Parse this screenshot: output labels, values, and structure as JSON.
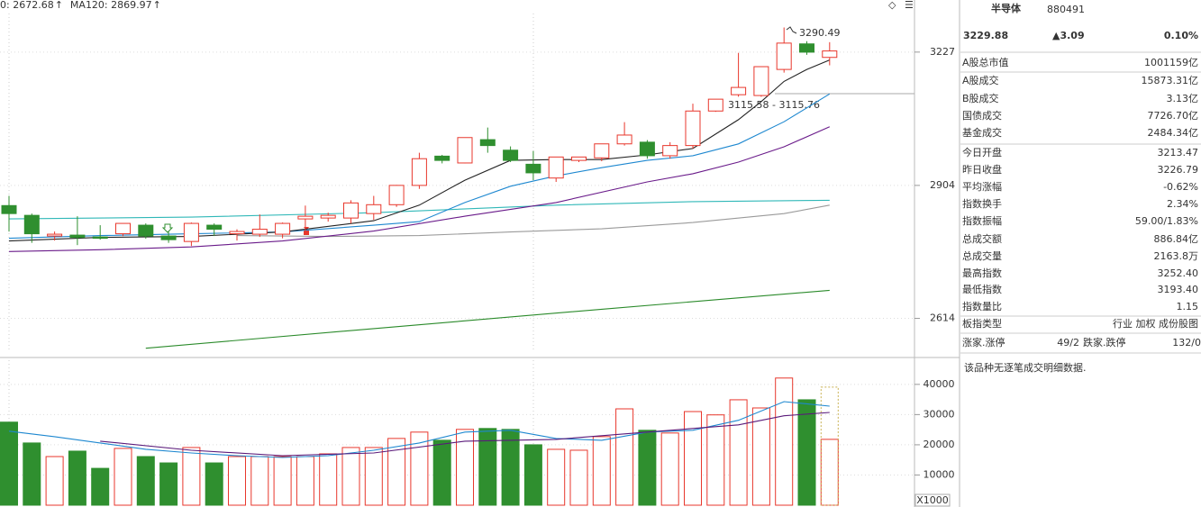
{
  "chart_data": [
    {
      "type": "candlestick",
      "log": true,
      "ylim": [
        2547,
        3327
      ],
      "yticks": [
        2614,
        2904,
        3227
      ],
      "grid": true,
      "up_color": "#e8372c",
      "down_color": "#2f8f2f",
      "legend": [
        {
          "text": "0: 2672.68",
          "color": "#2a8a2a"
        },
        {
          "text": "MA120: 2869.97",
          "color": "#30b8b8"
        }
      ],
      "legend_arrow": "↑",
      "annotations": [
        "3290.49",
        "3115.58 - 3115.76"
      ],
      "open": [
        2858,
        2836,
        2790,
        2792,
        2788,
        2795,
        2814,
        2790,
        2778,
        2814,
        2795,
        2794,
        2794,
        2828,
        2830,
        2830,
        2840,
        2860,
        2904,
        2972,
        2956,
        3011,
        2986,
        2953,
        2921,
        2962,
        2968,
        3001,
        3005,
        2973,
        2997,
        3080,
        3120,
        3118,
        3183,
        3248,
        3213.47
      ],
      "high": [
        2880,
        2840,
        2800,
        2834,
        2814,
        2818,
        2818,
        2800,
        2820,
        2818,
        2805,
        2838,
        2820,
        2858,
        2842,
        2870,
        2880,
        2905,
        2980,
        2975,
        3016,
        3040,
        2995,
        2984,
        2970,
        2970,
        3001,
        3053,
        3010,
        3005,
        3098,
        3109,
        3225,
        3190,
        3290.49,
        3255,
        3252.4
      ],
      "low": [
        2800,
        2775,
        2780,
        2770,
        2782,
        2790,
        2784,
        2775,
        2768,
        2790,
        2780,
        2788,
        2785,
        2795,
        2822,
        2818,
        2826,
        2855,
        2896,
        2955,
        2955,
        2980,
        2958,
        2916,
        2912,
        2958,
        2960,
        2997,
        2966,
        2966,
        2990,
        3078,
        3115,
        3115,
        3175,
        3220,
        3193.4
      ],
      "close": [
        2840,
        2795,
        2794,
        2787,
        2785,
        2818,
        2790,
        2782,
        2818,
        2805,
        2800,
        2805,
        2818,
        2834,
        2836,
        2864,
        2860,
        2904,
        2966,
        2962,
        3016,
        2997,
        2962,
        2933,
        2970,
        2970,
        3001,
        3022,
        2973,
        2997,
        3080,
        3109,
        3138,
        3190,
        3250,
        3226.79,
        3229.88
      ],
      "lines": [
        {
          "color": "#2a8a2a",
          "x": [
            6,
            16,
            26,
            36
          ],
          "values": [
            2553,
            2593,
            2633,
            2672.68
          ]
        },
        {
          "color": "#30b8b8",
          "x": [
            0,
            8,
            16,
            24,
            30,
            36
          ],
          "values": [
            2828,
            2832,
            2842,
            2859,
            2867,
            2869.97
          ]
        },
        {
          "color": "#9a9a9a",
          "x": [
            10,
            14,
            18,
            22,
            26,
            30,
            34,
            36
          ],
          "values": [
            2791,
            2789,
            2791,
            2799,
            2806,
            2820,
            2840,
            2859
          ]
        },
        {
          "color": "#6a1b8a",
          "x": [
            0,
            4,
            8,
            12,
            16,
            20,
            24,
            28,
            30,
            32,
            34,
            36
          ],
          "values": [
            2756,
            2760,
            2766,
            2779,
            2801,
            2834,
            2865,
            2912,
            2931,
            2958,
            2994,
            3042
          ]
        },
        {
          "color": "#1e88d0",
          "x": [
            0,
            4,
            8,
            12,
            16,
            18,
            20,
            22,
            24,
            26,
            28,
            30,
            32,
            34,
            36
          ],
          "values": [
            2785,
            2791,
            2795,
            2799,
            2814,
            2822,
            2865,
            2902,
            2926,
            2945,
            2962,
            2973,
            3001,
            3054,
            3122
          ]
        },
        {
          "color": "#222222",
          "x": [
            0,
            4,
            8,
            12,
            16,
            18,
            20,
            22,
            24,
            26,
            28,
            30,
            32,
            33,
            34,
            35,
            36
          ],
          "values": [
            2779,
            2787,
            2789,
            2799,
            2824,
            2859,
            2916,
            2962,
            2964,
            2964,
            2975,
            2990,
            3059,
            3103,
            3153,
            3183,
            3207
          ]
        }
      ]
    },
    {
      "type": "bar",
      "ylim": [
        0,
        48000
      ],
      "yticks": [
        10000,
        20000,
        30000,
        40000
      ],
      "grid": true,
      "unit": "X1000",
      "values": [
        27500,
        20600,
        16100,
        17900,
        12200,
        18800,
        16100,
        14000,
        19100,
        14000,
        16100,
        16100,
        16100,
        16100,
        17000,
        19100,
        19100,
        22100,
        24200,
        21500,
        25100,
        25400,
        25100,
        20000,
        18500,
        18200,
        22700,
        31900,
        24800,
        23900,
        31000,
        29900,
        34900,
        32200,
        42100,
        34900,
        21800
      ],
      "estimate": 39100,
      "lines": [
        {
          "color": "#1e88d0",
          "x": [
            0,
            2,
            4,
            6,
            8,
            10,
            12,
            14,
            16,
            18,
            20,
            22,
            24,
            26,
            28,
            30,
            32,
            34,
            36
          ],
          "values": [
            24500,
            22700,
            20600,
            18500,
            17300,
            16400,
            15800,
            16400,
            18200,
            20600,
            24200,
            24800,
            22100,
            21500,
            24200,
            24800,
            28100,
            34300,
            32800
          ]
        },
        {
          "color": "#5a1a7a",
          "x": [
            4,
            8,
            12,
            16,
            20,
            24,
            28,
            32,
            34,
            36
          ],
          "values": [
            21200,
            18200,
            16400,
            17300,
            21200,
            21800,
            24200,
            26600,
            29600,
            30700
          ]
        }
      ]
    }
  ],
  "panel": {
    "name": "半导体",
    "code": "880491",
    "price": "3229.88",
    "change": "▲3.09",
    "change_pct": "0.10%",
    "rows": [
      {
        "label": "A股总市值",
        "value": "1001159亿",
        "color": "#111"
      },
      {
        "label": "A股成交",
        "value": "15873.31亿",
        "color": "#111"
      },
      {
        "label": "B股成交",
        "value": "3.13亿",
        "color": "#111"
      },
      {
        "label": "国债成交",
        "value": "7726.70亿",
        "color": "#111"
      },
      {
        "label": "基金成交",
        "value": "2484.34亿",
        "color": "#111"
      },
      {
        "label": "今日开盘",
        "value": "3213.47",
        "color": "#1a9a1a"
      },
      {
        "label": "昨日收盘",
        "value": "3226.79",
        "color": "#111"
      },
      {
        "label": "平均涨幅",
        "value": "-0.62%",
        "color": "#1a9a1a"
      },
      {
        "label": "指数换手",
        "value": "2.34%",
        "color": "#111"
      },
      {
        "label": "指数振幅",
        "value": "59.00/1.83%",
        "color": "#111"
      },
      {
        "label": "总成交额",
        "value": "886.84亿",
        "color": "#111"
      },
      {
        "label": "总成交量",
        "value": "2163.8万",
        "color": "#111"
      },
      {
        "label": "最高指数",
        "value": "3252.40",
        "color": "#e8372c"
      },
      {
        "label": "最低指数",
        "value": "3193.40",
        "color": "#1a9a1a"
      },
      {
        "label": "指数量比",
        "value": "1.15",
        "color": "#e8372c"
      },
      {
        "label": "板指类型",
        "value": "行业 加权 成份股图",
        "color": "#444"
      }
    ],
    "breadth": {
      "up_label": "涨家.涨停",
      "up_value": "49/2",
      "down_label": "跌家.跌停",
      "down_value": "132/0"
    },
    "note": "该品种无逐笔成交明细数据."
  }
}
